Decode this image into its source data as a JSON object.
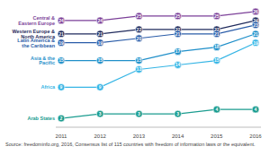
{
  "chart_data": {
    "type": "line",
    "categories": [
      "2011",
      "2012",
      "2013",
      "2014",
      "2015",
      "2016"
    ],
    "series": [
      {
        "name": "Central & Eastern Europe",
        "color": "#7b3f98",
        "values": [
          24,
          24,
          25,
          25,
          25,
          26
        ]
      },
      {
        "name": "Western Europe & North America",
        "color": "#1f2a5c",
        "values": [
          21,
          21,
          22,
          22,
          22,
          24
        ]
      },
      {
        "name": "Latin America & the Caribbean",
        "color": "#2a5ca8",
        "values": [
          19,
          19,
          20,
          21,
          21,
          23
        ]
      },
      {
        "name": "Asia & the Pacific",
        "color": "#1f8fc9",
        "values": [
          15,
          15,
          15,
          17,
          18,
          21
        ]
      },
      {
        "name": "Africa",
        "color": "#35b5e5",
        "values": [
          9,
          9,
          13,
          14,
          15,
          19
        ]
      },
      {
        "name": "Arab States",
        "color": "#1a9c8f",
        "values": [
          2,
          3,
          3,
          3,
          4,
          4
        ]
      }
    ],
    "ylim": [
      0,
      27
    ],
    "tick_labels": "x",
    "data_labels": true,
    "marker": "circle",
    "grid": false,
    "source": "Source: freedominfo.org, 2016, Consensus list of 115 countries with freedom of information laws or the equivalent."
  }
}
